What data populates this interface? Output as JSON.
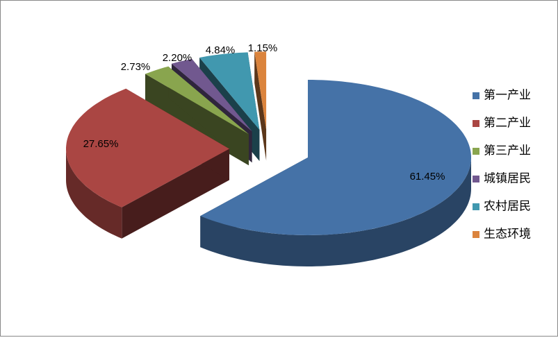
{
  "chart_data": {
    "type": "pie3d",
    "categories": [
      "第一产业",
      "第二产业",
      "第三产业",
      "城镇居民",
      "农村居民",
      "生态环境"
    ],
    "values": [
      61.45,
      27.65,
      2.73,
      2.2,
      4.84,
      1.15
    ],
    "value_labels": [
      "61.45%",
      "27.65%",
      "2.73%",
      "2.20%",
      "4.84%",
      "1.15%"
    ],
    "colors": [
      "#4572a7",
      "#aa4643",
      "#89a54e",
      "#71588f",
      "#4198af",
      "#db843d"
    ],
    "legend": "right"
  }
}
